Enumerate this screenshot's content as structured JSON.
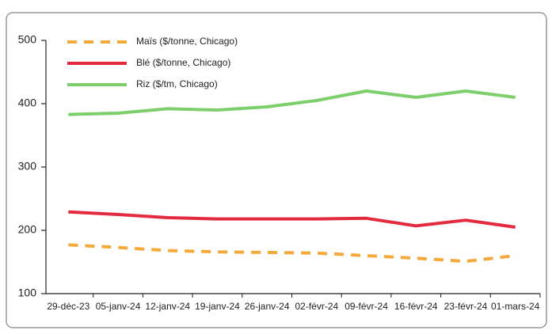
{
  "chart_data": {
    "type": "line",
    "categories": [
      "29-déc-23",
      "05-janv-24",
      "12-janv-24",
      "19-janv-24",
      "26-janv-24",
      "02-févr-24",
      "09-févr-24",
      "16-févr-24",
      "23-févr-24",
      "01-mars-24"
    ],
    "series": [
      {
        "name": "Maïs ($/tonne, Chicago)",
        "color": "#f5a93a",
        "dashed": true,
        "values": [
          177,
          173,
          168,
          166,
          165,
          164,
          160,
          156,
          151,
          160
        ]
      },
      {
        "name": "Blé ($/tonne, Chicago)",
        "color": "#e32a3f",
        "values": [
          229,
          225,
          220,
          218,
          218,
          218,
          219,
          207,
          216,
          205
        ]
      },
      {
        "name": "Riz ($/tm, Chicago)",
        "color": "#7dcf6c",
        "values": [
          383,
          385,
          392,
          390,
          395,
          405,
          420,
          410,
          420,
          410
        ]
      }
    ],
    "ylim": [
      100,
      500
    ],
    "yticks": [
      100,
      200,
      300,
      400,
      500
    ],
    "legend": "top-left"
  }
}
